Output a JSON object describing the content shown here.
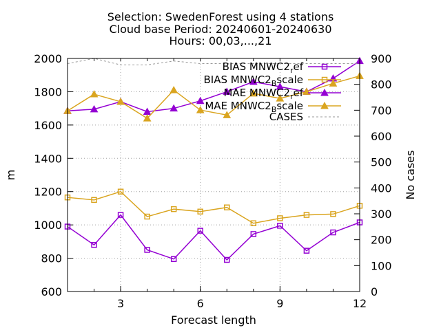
{
  "title_lines": [
    "Selection: SwedenForest using     4 stations",
    "Cloud base   Period: 20240601-20240630",
    "Hours: 00,03,...,21"
  ],
  "chart_data": {
    "type": "line",
    "xlabel": "Forecast length",
    "ylabel": "m",
    "y2label": "No cases",
    "xlim": [
      1,
      12
    ],
    "ylim": [
      600,
      2000
    ],
    "y2lim": [
      0,
      900
    ],
    "x_ticks": [
      3,
      6,
      9,
      12
    ],
    "y_ticks": [
      600,
      800,
      1000,
      1200,
      1400,
      1600,
      1800,
      2000
    ],
    "y2_ticks": [
      0,
      100,
      200,
      300,
      400,
      500,
      600,
      700,
      800,
      900
    ],
    "grid": true,
    "legend_position": "top-right",
    "x": [
      1,
      2,
      3,
      4,
      5,
      6,
      7,
      8,
      9,
      10,
      11,
      12
    ],
    "series": [
      {
        "name": "BIAS MNWC2_ref",
        "legend_base": "BIAS MNWC2",
        "legend_sub": "r",
        "legend_suffix": "ef",
        "color": "#9400d3",
        "marker": "square",
        "axis": "left",
        "values": [
          990,
          880,
          1060,
          850,
          795,
          965,
          790,
          945,
          995,
          845,
          955,
          1015
        ]
      },
      {
        "name": "BIAS MNWC2_Bscale",
        "legend_base": "BIAS MNWC2",
        "legend_sub": "B",
        "legend_suffix": "scale",
        "color": "#daa520",
        "marker": "square",
        "axis": "left",
        "values": [
          1165,
          1150,
          1200,
          1050,
          1095,
          1080,
          1105,
          1010,
          1040,
          1060,
          1065,
          1115
        ]
      },
      {
        "name": "MAE MNWC2_ref",
        "legend_base": "MAE MNWC2",
        "legend_sub": "r",
        "legend_suffix": "ef",
        "color": "#9400d3",
        "marker": "triangle",
        "axis": "left",
        "values": [
          1685,
          1695,
          1740,
          1680,
          1700,
          1745,
          1800,
          1860,
          1830,
          1800,
          1880,
          1985
        ]
      },
      {
        "name": "MAE MNWC2_Bscale",
        "legend_base": "MAE MNWC2",
        "legend_sub": "B",
        "legend_suffix": "scale",
        "color": "#daa520",
        "marker": "triangle",
        "axis": "left",
        "values": [
          1685,
          1785,
          1740,
          1640,
          1810,
          1690,
          1660,
          1790,
          1760,
          1800,
          1850,
          1895
        ]
      },
      {
        "name": "CASES",
        "legend_base": "CASES",
        "legend_sub": "",
        "legend_suffix": "",
        "color": "#999999",
        "marker": "none",
        "dashed": true,
        "axis": "right",
        "values": [
          880,
          900,
          875,
          875,
          890,
          880,
          880,
          880,
          880,
          880,
          880,
          880
        ]
      }
    ]
  }
}
